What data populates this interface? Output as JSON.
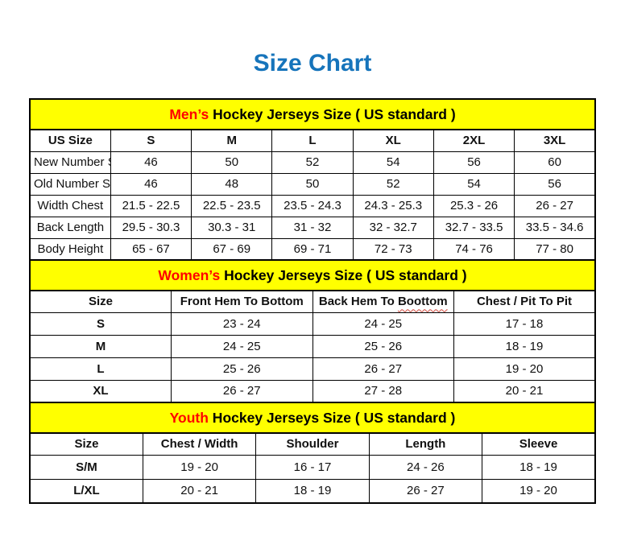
{
  "page": {
    "title": "Size Chart"
  },
  "colors": {
    "title_blue": "#1674bb",
    "banner_yellow": "#ffff00",
    "accent_red": "#ff0000",
    "border_black": "#000000"
  },
  "mens": {
    "banner": {
      "highlight": "Men’s",
      "rest": " Hockey Jerseys Size ( US standard )"
    },
    "columns": [
      "US Size",
      "S",
      "M",
      "L",
      "XL",
      "2XL",
      "3XL"
    ],
    "rows": [
      {
        "label": "New Number Size",
        "values": [
          "46",
          "50",
          "52",
          "54",
          "56",
          "60"
        ]
      },
      {
        "label": "Old Number Size",
        "values": [
          "46",
          "48",
          "50",
          "52",
          "54",
          "56"
        ]
      },
      {
        "label": "Width Chest",
        "values": [
          "21.5 - 22.5",
          "22.5 - 23.5",
          "23.5 - 24.3",
          "24.3 - 25.3",
          "25.3 - 26",
          "26 - 27"
        ]
      },
      {
        "label": "Back Length",
        "values": [
          "29.5 - 30.3",
          "30.3 - 31",
          "31 - 32",
          "32 - 32.7",
          "32.7 - 33.5",
          "33.5 - 34.6"
        ]
      },
      {
        "label": "Body Height",
        "values": [
          "65 - 67",
          "67 - 69",
          "69 - 71",
          "72 - 73",
          "74 - 76",
          "77 - 80"
        ]
      }
    ]
  },
  "womens": {
    "banner": {
      "highlight": "Women’s",
      "rest": " Hockey Jerseys Size ( US standard )"
    },
    "columns": [
      "Size",
      "Front Hem To Bottom",
      "Back Hem To Boottom",
      "Chest / Pit To Pit"
    ],
    "misspelled_word": "Boottom",
    "rows": [
      {
        "label": "S",
        "values": [
          "23 - 24",
          "24 - 25",
          "17 - 18"
        ]
      },
      {
        "label": "M",
        "values": [
          "24 - 25",
          "25 - 26",
          "18 - 19"
        ]
      },
      {
        "label": "L",
        "values": [
          "25 - 26",
          "26 - 27",
          "19 - 20"
        ]
      },
      {
        "label": "XL",
        "values": [
          "26 - 27",
          "27 - 28",
          "20 - 21"
        ]
      }
    ]
  },
  "youth": {
    "banner": {
      "highlight": "Youth",
      "rest": " Hockey Jerseys Size ( US standard )"
    },
    "columns": [
      "Size",
      "Chest / Width",
      "Shoulder",
      "Length",
      "Sleeve"
    ],
    "rows": [
      {
        "label": "S/M",
        "values": [
          "19 - 20",
          "16 - 17",
          "24 - 26",
          "18 - 19"
        ]
      },
      {
        "label": "L/XL",
        "values": [
          "20 - 21",
          "18 - 19",
          "26 - 27",
          "19 - 20"
        ]
      }
    ]
  }
}
